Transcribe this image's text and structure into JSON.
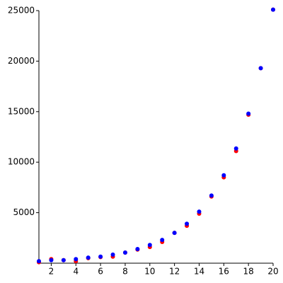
{
  "chart_data": {
    "type": "scatter",
    "x": [
      1,
      2,
      3,
      4,
      5,
      6,
      7,
      8,
      9,
      10,
      11,
      12,
      13,
      14,
      15,
      16,
      17,
      18,
      19,
      20
    ],
    "series": [
      {
        "color": "#ff0000",
        "values": [
          100,
          400,
          300,
          200,
          500,
          600,
          650,
          1050,
          1350,
          1600,
          2100,
          3000,
          3700,
          4900,
          6600,
          8500,
          11100,
          14700,
          19300,
          25100
        ]
      },
      {
        "color": "#0000ff",
        "values": [
          200,
          300,
          300,
          400,
          550,
          650,
          850,
          1050,
          1400,
          1800,
          2300,
          3000,
          3900,
          5100,
          6700,
          8700,
          11350,
          14800,
          19300,
          25100
        ]
      }
    ],
    "xlim": [
      1,
      20
    ],
    "xticks": [
      2,
      4,
      6,
      8,
      10,
      12,
      14,
      16,
      18,
      20
    ],
    "ylim": [
      0,
      25000
    ],
    "yticks": [
      5000,
      10000,
      15000,
      20000,
      25000
    ],
    "grid": false
  }
}
